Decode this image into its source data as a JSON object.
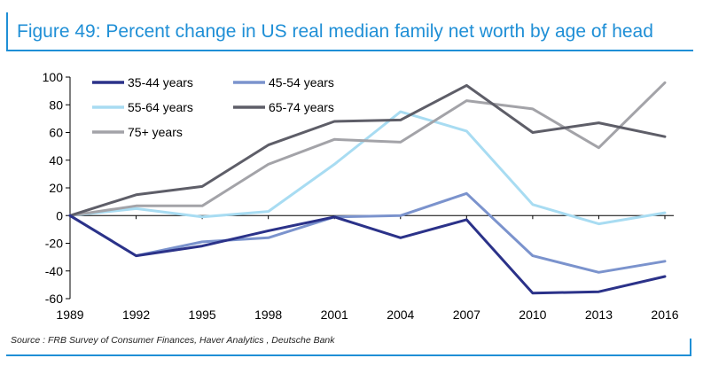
{
  "header": {
    "title": "Figure 49: Percent change in US real median family net worth by age of head"
  },
  "footer": {
    "source": "Source : FRB Survey of Consumer Finances, Haver Analytics , Deutsche Bank"
  },
  "chart_data": {
    "type": "line",
    "title": "Figure 49: Percent change in US real median family net worth by age of head",
    "xlabel": "",
    "ylabel": "",
    "x": [
      1989,
      1992,
      1995,
      1998,
      2001,
      2004,
      2007,
      2010,
      2013,
      2016
    ],
    "ylim": [
      -60,
      100
    ],
    "yticks": [
      -60,
      -40,
      -20,
      0,
      20,
      40,
      60,
      80,
      100
    ],
    "grid": false,
    "legend_position": "top-left",
    "series": [
      {
        "name": "35-44 years",
        "color": "#2b3289",
        "values": [
          0,
          -29,
          -22,
          -11,
          -1,
          -16,
          -3,
          -56,
          -55,
          -44
        ]
      },
      {
        "name": "45-54 years",
        "color": "#7b93cd",
        "values": [
          0,
          -29,
          -19,
          -16,
          -1,
          0,
          16,
          -29,
          -41,
          -33
        ]
      },
      {
        "name": "55-64 years",
        "color": "#a8dcf2",
        "values": [
          0,
          5,
          -1,
          3,
          37,
          75,
          61,
          8,
          -6,
          2
        ]
      },
      {
        "name": "65-74 years",
        "color": "#5e5e68",
        "values": [
          0,
          15,
          21,
          51,
          68,
          69,
          94,
          60,
          67,
          57
        ]
      },
      {
        "name": "75+ years",
        "color": "#a3a3a8",
        "values": [
          0,
          7,
          7,
          37,
          55,
          53,
          83,
          77,
          49,
          96
        ]
      }
    ]
  }
}
